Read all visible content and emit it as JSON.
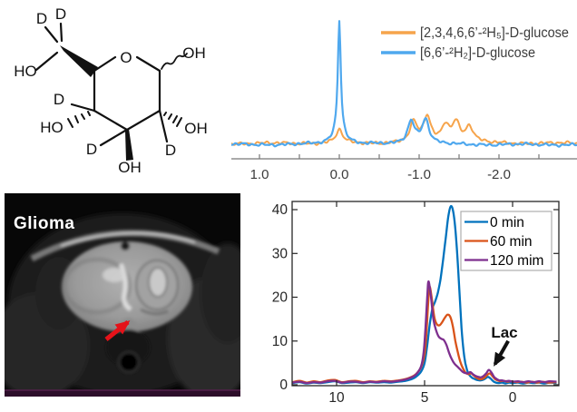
{
  "figure": {
    "background": "#ffffff",
    "description": "Four-panel deuterium metabolic imaging figure"
  },
  "molecule": {
    "name": "deuterium-labeled D-glucose structure",
    "atom_labels": [
      "D",
      "D",
      "HO",
      "O",
      "OH",
      "OH",
      "D",
      "OH",
      "D",
      "HO",
      "D"
    ]
  },
  "mri": {
    "label": "Glioma",
    "label_color": "#ffffff",
    "arrow_color": "#e51219",
    "strip_color": "#2d0e2a"
  },
  "chart_data": [
    {
      "type": "line",
      "title": "",
      "xlabel": "",
      "ylabel": "",
      "x_axis": {
        "unit": "ppm",
        "reversed": true,
        "range": [
          1.35,
          -2.98
        ],
        "ticks": [
          1.0,
          0.5,
          0.0,
          -0.5,
          -1.0,
          -1.5,
          -2.0,
          -2.5
        ],
        "labeled_ticks": [
          "1.0",
          "0.0",
          "-1.0",
          "-2.0"
        ]
      },
      "y_axis": {
        "visible": false,
        "range": [
          0,
          110
        ]
      },
      "grid": false,
      "legend": {
        "position": "upper right",
        "entries": [
          {
            "label": "[2,3,4,6,6’-²H₅]-D-glucose",
            "color": "#f6a44b"
          },
          {
            "label": "[6,6’-²H₂]-D-glucose",
            "color": "#4fa8ee"
          }
        ]
      },
      "series": [
        {
          "name": "[2,3,4,6,6’-²H₅]-D-glucose",
          "color": "#f6a44b",
          "peaks": [
            {
              "x": 0.0,
              "height": 11,
              "width": 0.05
            },
            {
              "x": -0.93,
              "height": 16,
              "width": 0.055
            },
            {
              "x": -1.1,
              "height": 21,
              "width": 0.055
            },
            {
              "x": -1.33,
              "height": 14,
              "width": 0.055
            },
            {
              "x": -1.46,
              "height": 16,
              "width": 0.055
            },
            {
              "x": -1.63,
              "height": 13,
              "width": 0.06
            }
          ],
          "baseline": 2.2,
          "noise_amp": 1.5,
          "noise_seed": 2.0
        },
        {
          "name": "[6,6’-²H₂]-D-glucose",
          "color": "#4fa8ee",
          "peaks": [
            {
              "x": 0.0,
              "height": 92,
              "width": 0.022
            },
            {
              "x": 0.0,
              "height": 9,
              "width": 0.09
            },
            {
              "x": -0.9,
              "height": 19,
              "width": 0.055
            },
            {
              "x": -1.08,
              "height": 20,
              "width": 0.055
            }
          ],
          "baseline": 1.2,
          "noise_amp": 1.4,
          "noise_seed": 5.0
        }
      ]
    },
    {
      "type": "line",
      "title": "",
      "xlabel": "",
      "ylabel": "",
      "x_axis": {
        "unit": "ppm",
        "reversed": true,
        "range": [
          12.6,
          -2.6
        ],
        "ticks": [
          10,
          5,
          0
        ],
        "tick_labels": [
          "10",
          "5",
          "0"
        ]
      },
      "y_axis": {
        "range": [
          0,
          41.9
        ],
        "ticks": [
          0,
          10,
          20,
          30,
          40
        ],
        "tick_labels": [
          "0",
          "10",
          "20",
          "30",
          "40"
        ]
      },
      "grid": false,
      "box": true,
      "legend": {
        "position": "upper right",
        "entries": [
          {
            "label": "0 min",
            "color": "#0072BD"
          },
          {
            "label": "60 min",
            "color": "#D95319"
          },
          {
            "label": "120 mim",
            "color": "#7E2F8E"
          }
        ]
      },
      "annotation": {
        "text": "Lac",
        "text_pos": [
          0.5,
          11.2
        ],
        "arrow_from": [
          0.25,
          10.0
        ],
        "arrow_to": [
          1.0,
          4.7
        ]
      },
      "series": [
        {
          "name": "0 min",
          "color": "#0072BD",
          "points": [
            [
              12.5,
              0.4
            ],
            [
              12.1,
              0.6
            ],
            [
              11.7,
              0.3
            ],
            [
              11.3,
              0.5
            ],
            [
              10.9,
              0.4
            ],
            [
              10.5,
              0.6
            ],
            [
              10.1,
              0.8
            ],
            [
              9.7,
              0.4
            ],
            [
              9.3,
              0.5
            ],
            [
              8.9,
              0.6
            ],
            [
              8.5,
              0.4
            ],
            [
              8.1,
              0.6
            ],
            [
              7.7,
              0.5
            ],
            [
              7.3,
              0.6
            ],
            [
              6.9,
              0.5
            ],
            [
              6.5,
              0.7
            ],
            [
              6.1,
              0.9
            ],
            [
              5.8,
              1.2
            ],
            [
              5.5,
              1.8
            ],
            [
              5.2,
              3.0
            ],
            [
              5.0,
              5.0
            ],
            [
              4.85,
              9.0
            ],
            [
              4.7,
              14.0
            ],
            [
              4.55,
              17.5
            ],
            [
              4.4,
              19.0
            ],
            [
              4.25,
              21.0
            ],
            [
              4.1,
              24.0
            ],
            [
              3.95,
              28.5
            ],
            [
              3.8,
              33.5
            ],
            [
              3.65,
              38.5
            ],
            [
              3.5,
              40.8
            ],
            [
              3.35,
              39.0
            ],
            [
              3.2,
              33.0
            ],
            [
              3.05,
              23.5
            ],
            [
              2.9,
              13.0
            ],
            [
              2.75,
              6.5
            ],
            [
              2.6,
              3.5
            ],
            [
              2.45,
              2.2
            ],
            [
              2.3,
              1.6
            ],
            [
              2.15,
              1.3
            ],
            [
              2.0,
              1.1
            ],
            [
              1.85,
              1.0
            ],
            [
              1.7,
              1.1
            ],
            [
              1.55,
              1.4
            ],
            [
              1.4,
              1.8
            ],
            [
              1.25,
              1.4
            ],
            [
              1.1,
              0.8
            ],
            [
              0.95,
              0.5
            ],
            [
              0.8,
              0.4
            ],
            [
              0.6,
              0.5
            ],
            [
              0.4,
              0.3
            ],
            [
              0.2,
              0.5
            ],
            [
              0.0,
              0.4
            ],
            [
              -0.3,
              0.5
            ],
            [
              -0.6,
              0.3
            ],
            [
              -0.9,
              0.5
            ],
            [
              -1.2,
              0.4
            ],
            [
              -1.5,
              0.5
            ],
            [
              -1.8,
              0.3
            ],
            [
              -2.1,
              0.5
            ],
            [
              -2.5,
              0.4
            ]
          ]
        },
        {
          "name": "60 min",
          "color": "#D95319",
          "points": [
            [
              12.5,
              0.6
            ],
            [
              12.1,
              0.9
            ],
            [
              11.7,
              0.5
            ],
            [
              11.3,
              0.8
            ],
            [
              10.9,
              0.6
            ],
            [
              10.5,
              1.0
            ],
            [
              10.1,
              1.1
            ],
            [
              9.7,
              0.6
            ],
            [
              9.3,
              0.8
            ],
            [
              8.9,
              0.9
            ],
            [
              8.5,
              0.6
            ],
            [
              8.1,
              0.8
            ],
            [
              7.7,
              0.7
            ],
            [
              7.3,
              0.9
            ],
            [
              6.9,
              0.8
            ],
            [
              6.5,
              1.0
            ],
            [
              6.1,
              1.3
            ],
            [
              5.8,
              1.7
            ],
            [
              5.5,
              2.4
            ],
            [
              5.2,
              4.0
            ],
            [
              5.0,
              7.0
            ],
            [
              4.9,
              11.5
            ],
            [
              4.8,
              18.5
            ],
            [
              4.72,
              22.4
            ],
            [
              4.6,
              20.0
            ],
            [
              4.45,
              15.5
            ],
            [
              4.3,
              13.8
            ],
            [
              4.15,
              13.6
            ],
            [
              4.0,
              14.3
            ],
            [
              3.85,
              15.3
            ],
            [
              3.7,
              16.0
            ],
            [
              3.55,
              15.6
            ],
            [
              3.4,
              13.5
            ],
            [
              3.25,
              10.0
            ],
            [
              3.1,
              7.2
            ],
            [
              2.95,
              5.0
            ],
            [
              2.8,
              3.6
            ],
            [
              2.65,
              2.7
            ],
            [
              2.5,
              2.4
            ],
            [
              2.35,
              2.6
            ],
            [
              2.2,
              2.1
            ],
            [
              2.05,
              1.6
            ],
            [
              1.9,
              1.3
            ],
            [
              1.75,
              1.3
            ],
            [
              1.6,
              1.6
            ],
            [
              1.45,
              2.2
            ],
            [
              1.3,
              2.6
            ],
            [
              1.15,
              2.0
            ],
            [
              1.0,
              1.3
            ],
            [
              0.85,
              1.0
            ],
            [
              0.7,
              0.8
            ],
            [
              0.5,
              0.9
            ],
            [
              0.3,
              0.7
            ],
            [
              0.1,
              0.8
            ],
            [
              -0.2,
              0.6
            ],
            [
              -0.5,
              0.7
            ],
            [
              -0.8,
              0.5
            ],
            [
              -1.1,
              0.7
            ],
            [
              -1.4,
              0.5
            ],
            [
              -1.7,
              0.7
            ],
            [
              -2.0,
              0.5
            ],
            [
              -2.5,
              0.6
            ]
          ]
        },
        {
          "name": "120 mim",
          "color": "#7E2F8E",
          "points": [
            [
              12.5,
              0.5
            ],
            [
              12.1,
              0.7
            ],
            [
              11.7,
              0.4
            ],
            [
              11.3,
              0.6
            ],
            [
              10.9,
              0.5
            ],
            [
              10.5,
              0.8
            ],
            [
              10.1,
              0.9
            ],
            [
              9.7,
              0.5
            ],
            [
              9.3,
              0.7
            ],
            [
              8.9,
              0.7
            ],
            [
              8.5,
              0.5
            ],
            [
              8.1,
              0.7
            ],
            [
              7.7,
              0.6
            ],
            [
              7.3,
              0.8
            ],
            [
              6.9,
              0.7
            ],
            [
              6.5,
              0.9
            ],
            [
              6.1,
              1.2
            ],
            [
              5.8,
              1.6
            ],
            [
              5.5,
              2.3
            ],
            [
              5.2,
              4.2
            ],
            [
              5.05,
              7.5
            ],
            [
              4.95,
              13.0
            ],
            [
              4.85,
              20.0
            ],
            [
              4.78,
              23.6
            ],
            [
              4.65,
              20.5
            ],
            [
              4.5,
              15.0
            ],
            [
              4.35,
              12.5
            ],
            [
              4.2,
              11.0
            ],
            [
              4.05,
              10.5
            ],
            [
              3.9,
              10.2
            ],
            [
              3.75,
              9.0
            ],
            [
              3.6,
              7.2
            ],
            [
              3.45,
              5.8
            ],
            [
              3.3,
              4.8
            ],
            [
              3.15,
              4.2
            ],
            [
              3.0,
              3.6
            ],
            [
              2.85,
              3.0
            ],
            [
              2.7,
              2.7
            ],
            [
              2.55,
              2.6
            ],
            [
              2.4,
              2.9
            ],
            [
              2.25,
              2.4
            ],
            [
              2.1,
              2.0
            ],
            [
              1.95,
              1.8
            ],
            [
              1.8,
              1.7
            ],
            [
              1.65,
              2.0
            ],
            [
              1.5,
              2.6
            ],
            [
              1.35,
              3.4
            ],
            [
              1.2,
              2.8
            ],
            [
              1.05,
              1.8
            ],
            [
              0.9,
              1.3
            ],
            [
              0.75,
              1.0
            ],
            [
              0.6,
              1.0
            ],
            [
              0.4,
              0.8
            ],
            [
              0.2,
              0.9
            ],
            [
              0.0,
              0.7
            ],
            [
              -0.3,
              0.8
            ],
            [
              -0.6,
              0.6
            ],
            [
              -0.9,
              0.8
            ],
            [
              -1.2,
              0.6
            ],
            [
              -1.5,
              0.8
            ],
            [
              -1.8,
              0.6
            ],
            [
              -2.1,
              0.8
            ],
            [
              -2.5,
              0.7
            ]
          ]
        }
      ]
    }
  ]
}
